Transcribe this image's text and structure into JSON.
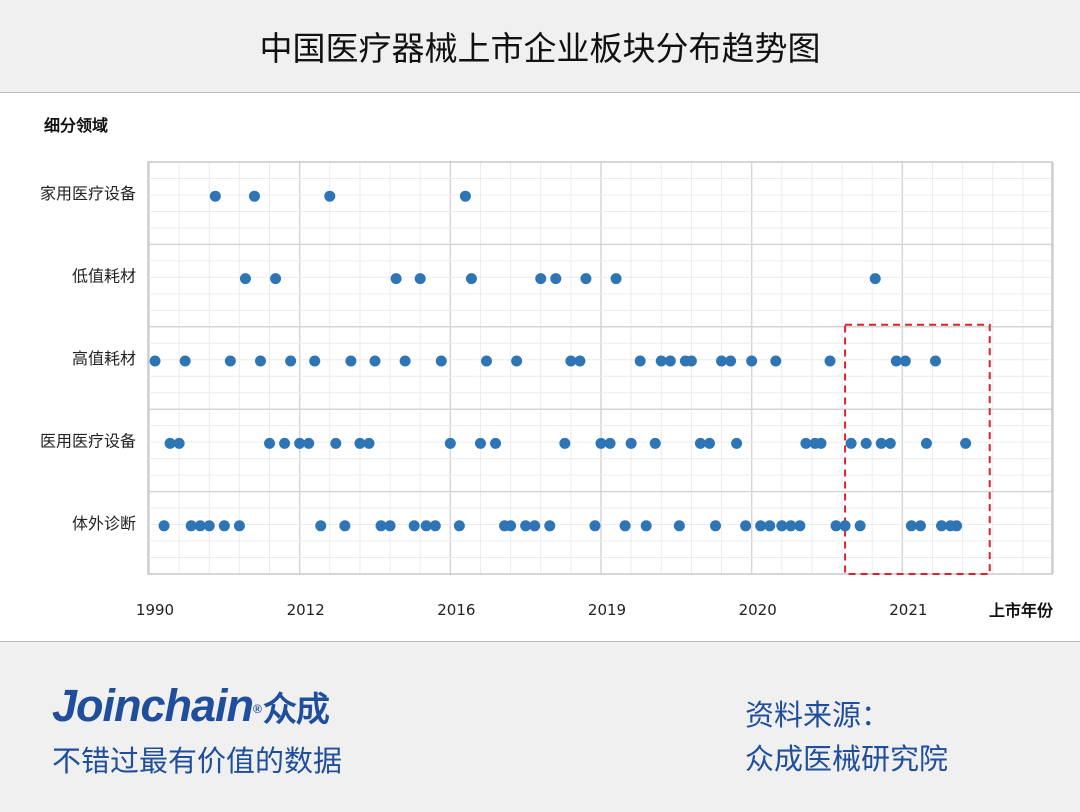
{
  "header": {
    "title": "中国医疗器械上市企业板块分布趋势图"
  },
  "chart_data": {
    "type": "scatter",
    "title": "中国医疗器械上市企业板块分布趋势图",
    "ylabel": "细分领域",
    "xlabel": "上市年份",
    "x_unit_note": "x in minor-grid units; ticks every 5 units",
    "xlim": [
      0,
      30
    ],
    "xticks": [
      {
        "value": 0,
        "label": "1990"
      },
      {
        "value": 5,
        "label": "2012"
      },
      {
        "value": 10,
        "label": "2016"
      },
      {
        "value": 15,
        "label": "2019"
      },
      {
        "value": 20,
        "label": "2020"
      },
      {
        "value": 25,
        "label": "2021"
      }
    ],
    "categories": [
      "家用医疗设备",
      "低值耗材",
      "高值耗材",
      "医用医疗设备",
      "体外诊断"
    ],
    "grid": true,
    "color": "#2e75b6",
    "series": [
      {
        "name": "家用医疗设备",
        "x": [
          2.2,
          3.5,
          6.0,
          10.5
        ]
      },
      {
        "name": "低值耗材",
        "x": [
          3.2,
          4.2,
          8.2,
          9.0,
          10.7,
          13.0,
          13.5,
          14.5,
          15.5,
          24.1
        ]
      },
      {
        "name": "高值耗材",
        "x": [
          0.2,
          1.2,
          2.7,
          3.7,
          4.7,
          5.5,
          6.7,
          7.5,
          8.5,
          9.7,
          11.2,
          12.2,
          14.0,
          14.3,
          16.3,
          17.0,
          17.3,
          17.8,
          18.0,
          19.0,
          19.3,
          20.0,
          20.8,
          22.6,
          24.8,
          25.1,
          26.1
        ]
      },
      {
        "name": "医用医疗设备",
        "x": [
          0.7,
          1.0,
          4.0,
          4.5,
          5.0,
          5.3,
          6.2,
          7.0,
          7.3,
          10.0,
          11.0,
          11.5,
          13.8,
          15.0,
          15.3,
          16.0,
          16.8,
          18.3,
          18.6,
          19.5,
          21.8,
          22.1,
          22.3,
          23.3,
          23.8,
          24.3,
          24.6,
          25.8,
          27.1
        ]
      },
      {
        "name": "体外诊断",
        "x": [
          0.5,
          1.4,
          1.7,
          2.0,
          2.5,
          3.0,
          5.7,
          6.5,
          7.7,
          8.0,
          8.8,
          9.2,
          9.5,
          10.3,
          11.8,
          12.0,
          12.5,
          12.8,
          13.3,
          14.8,
          15.8,
          16.5,
          17.6,
          18.8,
          19.8,
          20.3,
          20.6,
          21.0,
          21.3,
          21.6,
          22.8,
          23.1,
          23.6,
          25.3,
          25.6,
          26.3,
          26.6,
          26.8
        ]
      }
    ],
    "annotations": [
      {
        "type": "dashed-box",
        "color": "#d9232d",
        "x_range": [
          23.1,
          27.9
        ],
        "categories": [
          "高值耗材",
          "医用医疗设备",
          "体外诊断"
        ]
      }
    ]
  },
  "footer": {
    "brand": "Joinchain",
    "brand_cn": "众成",
    "reg": "®",
    "tagline": "不错过最有价值的数据",
    "source_label": "资料来源：",
    "source": "众成医械研究院"
  }
}
